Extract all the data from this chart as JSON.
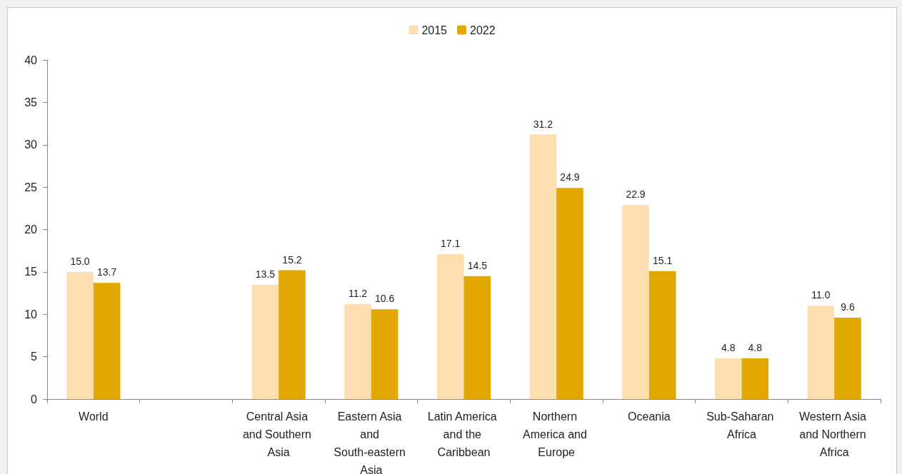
{
  "chart_data": {
    "type": "bar",
    "categories": [
      "World",
      null,
      "Central Asia and Southern Asia",
      "Eastern Asia and South-eastern Asia",
      "Latin America and the Caribbean",
      "Northern America and Europe",
      "Oceania",
      "Sub-Saharan Africa",
      "Western Asia and Northern Africa"
    ],
    "series": [
      {
        "name": "2015",
        "color": "#fddeb0",
        "values": [
          15.0,
          null,
          13.5,
          11.2,
          17.1,
          31.2,
          22.9,
          4.8,
          11.0
        ],
        "value_labels": [
          "15.0",
          null,
          "13.5",
          "11.2",
          "17.1",
          "31.2",
          "22.9",
          "4.8",
          "11.0"
        ]
      },
      {
        "name": "2022",
        "color": "#e0a800",
        "values": [
          13.7,
          null,
          15.2,
          10.6,
          14.5,
          24.9,
          15.1,
          4.8,
          9.6
        ],
        "value_labels": [
          "13.7",
          null,
          "15.2",
          "10.6",
          "14.5",
          "24.9",
          "15.1",
          "4.8",
          "9.6"
        ]
      }
    ],
    "ylim": [
      0,
      40
    ],
    "yticks": [
      0,
      5,
      10,
      15,
      20,
      25,
      30,
      35,
      40
    ],
    "grid": false,
    "legend": "top"
  }
}
